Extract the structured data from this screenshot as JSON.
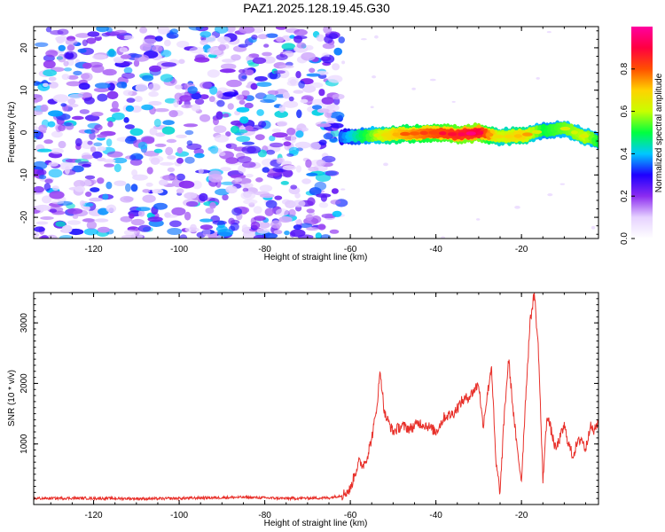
{
  "page": {
    "title": "PAZ1.2025.128.19.45.G30"
  },
  "chart_data": [
    {
      "type": "heatmap",
      "title": "PAZ1.2025.128.19.45.G30",
      "xlabel": "Height of straight line (km)",
      "ylabel": "Frequency (Hz)",
      "xlim": [
        -134,
        -2
      ],
      "ylim": [
        -25,
        25
      ],
      "x_ticks": [
        -120,
        -100,
        -80,
        -60,
        -40,
        -20
      ],
      "y_ticks": [
        -20,
        -10,
        0,
        10,
        20
      ],
      "colorbar": {
        "label": "Normalized spectral amplitude",
        "range": [
          0,
          1
        ],
        "ticks": [
          "0.0",
          "0.2",
          "0.4",
          "0.6",
          "0.8"
        ],
        "colors": [
          "#ffffff",
          "#e6d2ff",
          "#8c2cf0",
          "#1e00ff",
          "#00c8ff",
          "#00ff40",
          "#c8ff00",
          "#ffd200",
          "#ff5000",
          "#ff0040",
          "#ff00a0"
        ]
      },
      "signal_ridge": {
        "x": [
          -62,
          -55,
          -50,
          -45,
          -40,
          -35,
          -30,
          -25,
          -20,
          -15,
          -10,
          -5,
          -2
        ],
        "frequency": [
          -1,
          -0.7,
          -0.5,
          -0.2,
          0,
          -0.5,
          0,
          -1,
          -0.8,
          0.5,
          1,
          -1,
          -2
        ],
        "amplitude": [
          0.35,
          0.55,
          0.7,
          0.75,
          0.8,
          0.85,
          0.9,
          0.6,
          0.7,
          0.5,
          0.55,
          0.6,
          0.5
        ]
      },
      "noise_region_x": [
        -134,
        -62
      ],
      "noise_amplitude": 0.25
    },
    {
      "type": "line",
      "xlabel": "Height of straight line (km)",
      "ylabel": "SNR (10 * v/v)",
      "xlim": [
        -134,
        -2
      ],
      "ylim": [
        0,
        3500
      ],
      "x_ticks": [
        -120,
        -100,
        -80,
        -60,
        -40,
        -20
      ],
      "y_ticks": [
        1000,
        2000,
        3000
      ],
      "series": [
        {
          "color": "#e8302a",
          "x": [
            -134,
            -125,
            -115,
            -105,
            -95,
            -85,
            -75,
            -65,
            -62,
            -60,
            -59,
            -58,
            -57,
            -56,
            -55,
            -54,
            -53,
            -52,
            -50,
            -48,
            -46,
            -44,
            -42,
            -40,
            -38,
            -36,
            -34,
            -32,
            -30,
            -29,
            -28,
            -27,
            -26,
            -25,
            -24,
            -23,
            -22,
            -21,
            -20,
            -19,
            -18,
            -17,
            -16,
            -15,
            -14,
            -13,
            -12,
            -11,
            -10,
            -9,
            -8,
            -7,
            -6,
            -5,
            -4,
            -3,
            -2
          ],
          "values": [
            100,
            105,
            100,
            95,
            110,
            120,
            100,
            110,
            150,
            250,
            500,
            700,
            650,
            800,
            1100,
            1500,
            2200,
            1500,
            1200,
            1300,
            1250,
            1350,
            1300,
            1200,
            1450,
            1500,
            1700,
            1800,
            2000,
            1300,
            1800,
            2300,
            700,
            200,
            1500,
            2400,
            1600,
            900,
            400,
            1800,
            3000,
            3500,
            2500,
            400,
            1500,
            1200,
            900,
            1100,
            1300,
            1000,
            800,
            1000,
            1100,
            900,
            1300,
            1200,
            1400
          ]
        }
      ]
    }
  ]
}
